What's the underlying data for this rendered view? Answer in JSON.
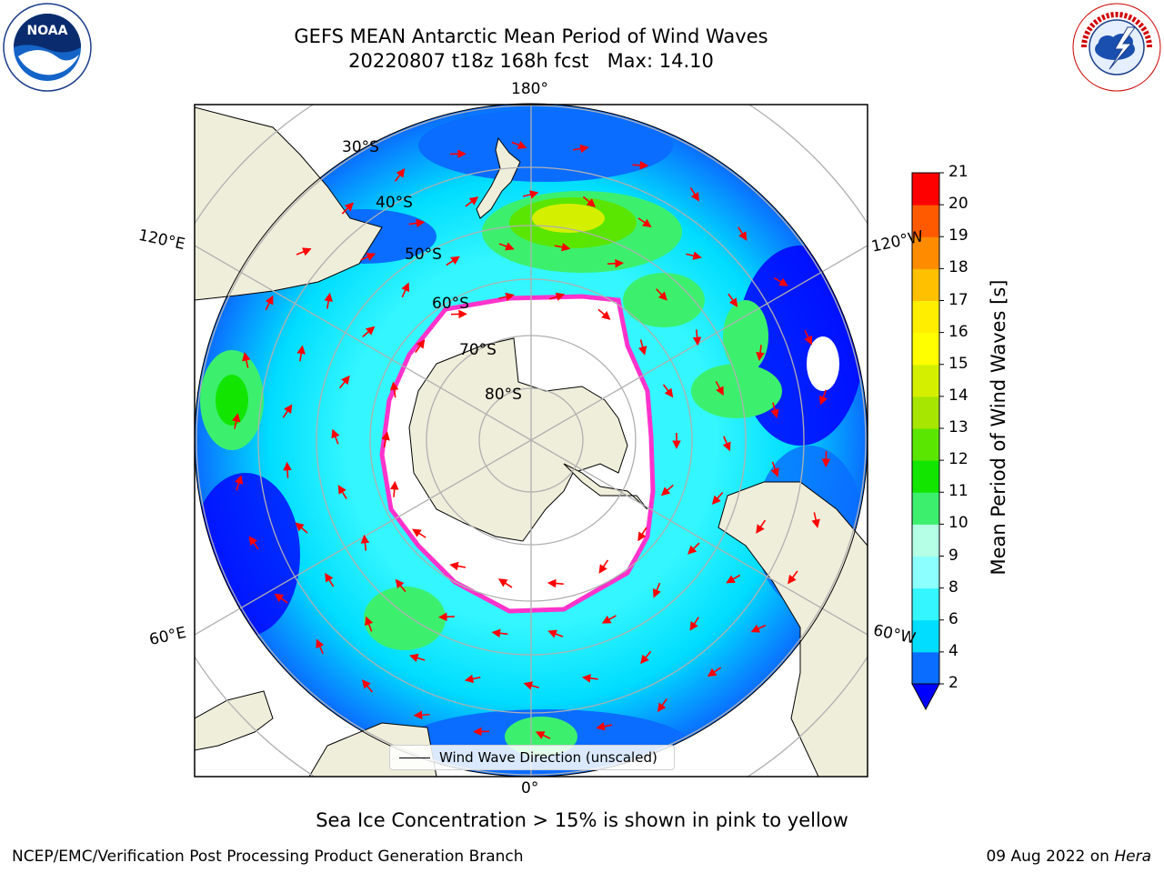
{
  "header": {
    "title_line1": "GEFS MEAN Antarctic Mean Period of Wind Waves",
    "title_line2": "20220807 t18z 168h fcst   Max: 14.10"
  },
  "logos": {
    "left": "noaa-logo",
    "right": "nws-logo"
  },
  "map": {
    "longitude_labels": {
      "top": "180°",
      "bottom": "0°",
      "upper_left": "120°E",
      "upper_right": "120°W",
      "lower_left": "60°E",
      "lower_right": "60°W"
    },
    "latitude_labels": [
      "30°S",
      "40°S",
      "50°S",
      "60°S",
      "70°S",
      "80°S"
    ],
    "legend_label": "Wind Wave Direction (unscaled)",
    "colors": {
      "land": "#efeedb",
      "sea_ice": "#ffffff",
      "graticule": "#b0b0b0",
      "arrow": "#ff0000",
      "ice_edge": "#ff33cc"
    }
  },
  "colorbar": {
    "title": "Mean Period of Wind Waves [s]",
    "ticks": [
      "2",
      "4",
      "6",
      "8",
      "9",
      "10",
      "11",
      "12",
      "13",
      "14",
      "15",
      "16",
      "17",
      "18",
      "19",
      "20",
      "21"
    ],
    "colors": [
      "#0a6dff",
      "#00ddff",
      "#33f6ff",
      "#8cffff",
      "#b4ffe6",
      "#3cf06e",
      "#12e600",
      "#5ae600",
      "#a6e600",
      "#d4f000",
      "#ffff00",
      "#ffee00",
      "#ffc000",
      "#ff8c00",
      "#ff5a00",
      "#ff2600",
      "#ff0000"
    ],
    "underflow_color": "#0000ff"
  },
  "caption": "Sea Ice Concentration > 15% is shown in pink to yellow",
  "footer": {
    "left": "NCEP/EMC/Verification Post Processing Product Generation Branch",
    "right_date": "09 Aug 2022 on ",
    "right_host": "Hera"
  }
}
